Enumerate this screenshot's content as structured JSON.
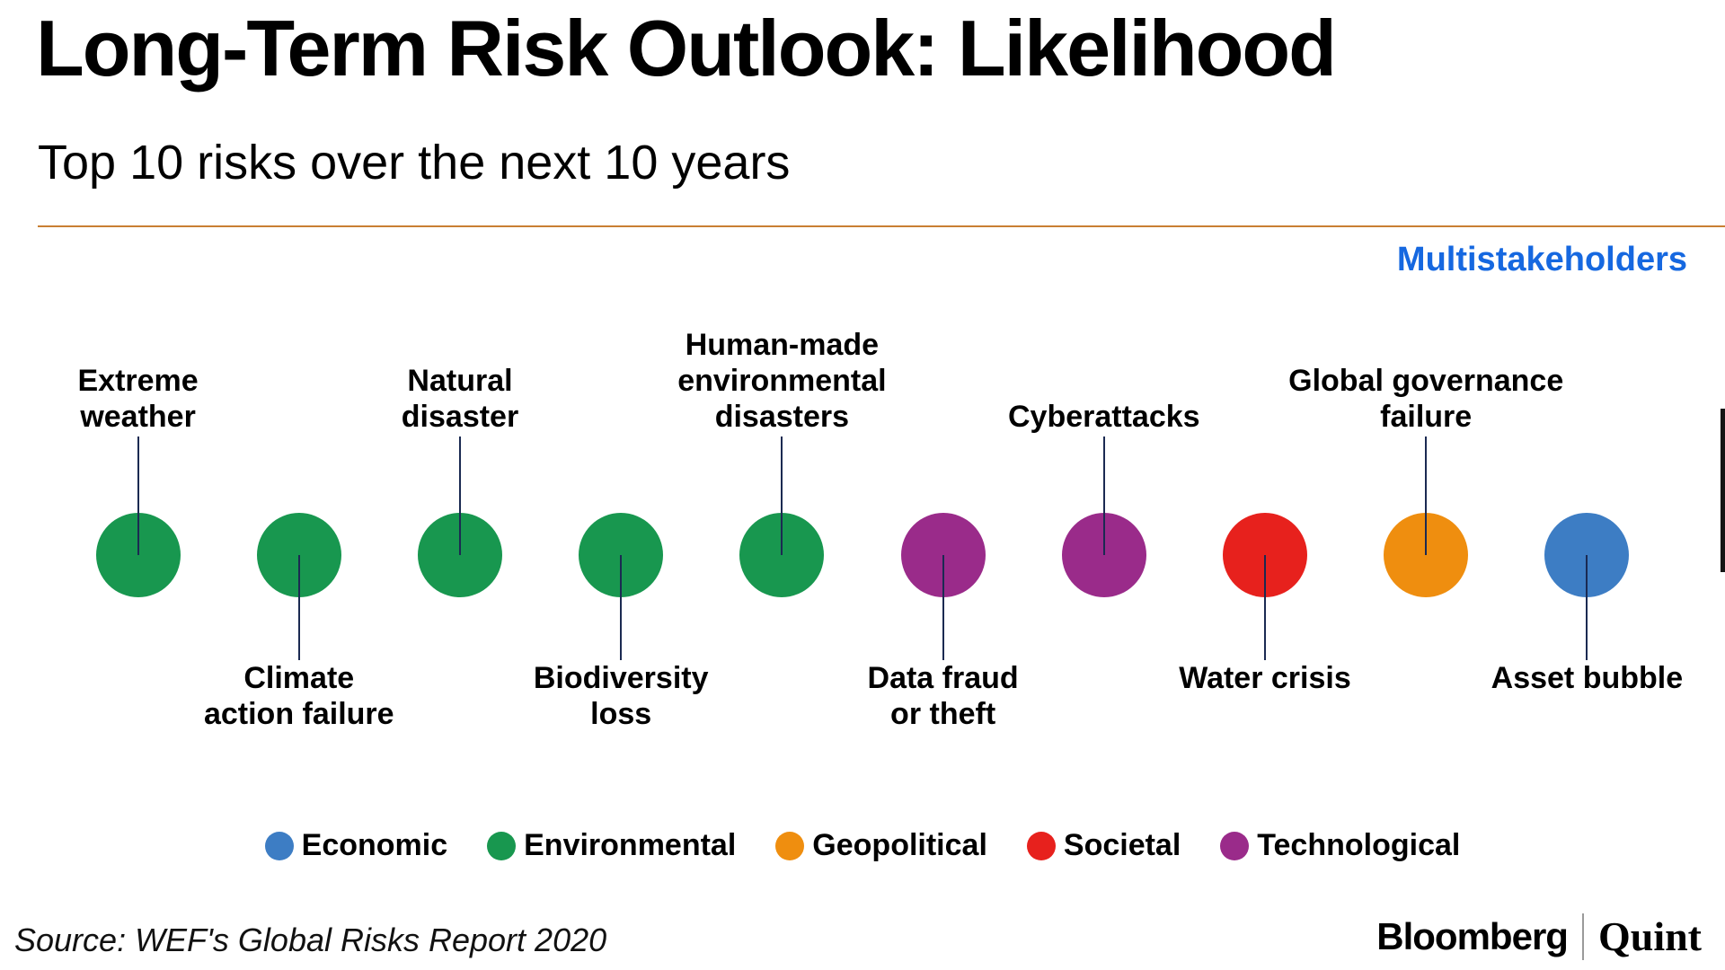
{
  "header": {
    "title": "Long-Term Risk Outlook: Likelihood",
    "subtitle": "Top 10 risks over the next 10 years",
    "annotation": "Multistakeholders"
  },
  "chart_data": {
    "type": "scatter",
    "title": "Long-Term Risk Outlook: Likelihood",
    "subtitle": "Top 10 risks over the next 10 years",
    "annotation": "Multistakeholders",
    "orientation": "horizontal-row",
    "legend_position": "bottom",
    "points": [
      {
        "label": "Extreme\nweather",
        "category": "Environmental",
        "label_position": "above"
      },
      {
        "label": "Climate\naction failure",
        "category": "Environmental",
        "label_position": "below"
      },
      {
        "label": "Natural\ndisaster",
        "category": "Environmental",
        "label_position": "above"
      },
      {
        "label": "Biodiversity\nloss",
        "category": "Environmental",
        "label_position": "below"
      },
      {
        "label": "Human-made\nenvironmental\ndisasters",
        "category": "Environmental",
        "label_position": "above"
      },
      {
        "label": "Data fraud\nor theft",
        "category": "Technological",
        "label_position": "below"
      },
      {
        "label": "Cyberattacks",
        "category": "Technological",
        "label_position": "above"
      },
      {
        "label": "Water crisis",
        "category": "Societal",
        "label_position": "below"
      },
      {
        "label": "Global governance\nfailure",
        "category": "Geopolitical",
        "label_position": "above"
      },
      {
        "label": "Asset bubble",
        "category": "Economic",
        "label_position": "below"
      }
    ],
    "legend": [
      {
        "label": "Economic",
        "color": "#3d7dc4"
      },
      {
        "label": "Environmental",
        "color": "#18974f"
      },
      {
        "label": "Geopolitical",
        "color": "#ef8e0f"
      },
      {
        "label": "Societal",
        "color": "#e7211d"
      },
      {
        "label": "Technological",
        "color": "#9a2b8a"
      }
    ]
  },
  "colors": {
    "annotation_blue": "#1668e0",
    "divider_orange": "#c97f33",
    "connector_navy": "#1b2a52"
  },
  "footer": {
    "source": "Source: WEF's Global Risks Report 2020",
    "brand_primary": "Bloomberg",
    "brand_secondary": "Quint"
  }
}
